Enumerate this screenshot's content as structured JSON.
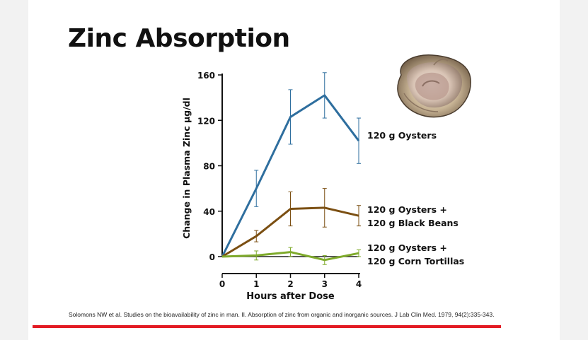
{
  "slide": {
    "title": "Zinc Absorption",
    "citation": "Solomons NW et al. Studies on the bioavailability of zinc in man. II. Absorption of zinc from organic and inorganic sources. J Lab Clin Med. 1979, 94(2):335-343."
  },
  "image": {
    "icon": "oyster-shell-photo"
  },
  "colors": {
    "oysters": "#2e6e9e",
    "beans": "#7b4f12",
    "tortillas": "#7fab2c",
    "red_line": "#e31b23"
  },
  "chart_data": {
    "type": "line",
    "title": "",
    "xlabel": "Hours after Dose",
    "ylabel": "Change in Plasma Zinc µg/dl",
    "xlim": [
      0,
      4
    ],
    "ylim": [
      0,
      160
    ],
    "x": [
      0,
      1,
      2,
      3,
      4
    ],
    "x_ticks": [
      "0",
      "1",
      "2",
      "3",
      "4"
    ],
    "y_ticks": [
      "0",
      "40",
      "80",
      "120",
      "160"
    ],
    "grid": false,
    "legend": "labels at line ends (right)",
    "series": [
      {
        "name": "120 g Oysters",
        "label_lines": [
          "120 g Oysters"
        ],
        "color": "#2e6e9e",
        "values": [
          0,
          60,
          123,
          142,
          102
        ],
        "errors": [
          0,
          16,
          24,
          20,
          20
        ]
      },
      {
        "name": "120 g Oysters + 120 g Black Beans",
        "label_lines": [
          "120 g Oysters +",
          "120 g Black Beans"
        ],
        "color": "#7b4f12",
        "values": [
          0,
          18,
          42,
          43,
          36
        ],
        "errors": [
          0,
          5,
          15,
          17,
          9
        ]
      },
      {
        "name": "120 g Oysters + 120 g Corn Tortillas",
        "label_lines": [
          "120 g Oysters +",
          "120 g Corn Tortillas"
        ],
        "color": "#7fab2c",
        "values": [
          0,
          1,
          4,
          -3,
          3
        ],
        "errors": [
          0,
          4,
          4,
          4,
          3
        ]
      }
    ]
  }
}
